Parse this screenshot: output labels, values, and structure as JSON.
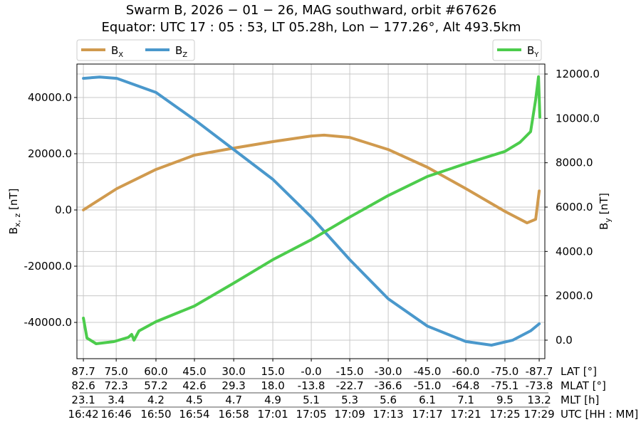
{
  "chart_data": {
    "type": "line",
    "title_line1": "Swarm B,  2026 − 01 − 26,  MAG southward,  orbit #67626",
    "title_line2": "Equator:  UTC 17 : 05 : 53,  LT 05.28h,  Lon − 177.26°,  Alt 493.5km",
    "ylabel_left": "B",
    "ylabel_left_sub": "x, z",
    "ylabel_left_unit": " [nT]",
    "ylabel_right": "B",
    "ylabel_right_sub": "y",
    "ylabel_right_unit": " [nT]",
    "xlim": [
      "16:41:20",
      "17:29:35"
    ],
    "ylim_left": [
      -52900,
      51900
    ],
    "ylim_right": [
      -835,
      12450
    ],
    "yticks_left": [
      40000,
      20000,
      0,
      -20000,
      -40000
    ],
    "yticks_left_labels": [
      "40000.0",
      "20000.0",
      "0.0",
      "-20000.0",
      "-40000.0"
    ],
    "yticks_right": [
      12000,
      10000,
      8000,
      6000,
      4000,
      2000,
      0
    ],
    "yticks_right_labels": [
      "12000.0",
      "10000.0",
      "8000.0",
      "6000.0",
      "4000.0",
      "2000.0",
      "0.0"
    ],
    "grid": true,
    "x_tick_rows": [
      {
        "name": "LAT [°]",
        "labels": [
          "87.7",
          "75.0",
          "60.0",
          "45.0",
          "30.0",
          "15.0",
          "-0.0",
          "-15.0",
          "-30.0",
          "-45.0",
          "-60.0",
          "-75.0",
          "-87.7"
        ]
      },
      {
        "name": "MLAT [°]",
        "labels": [
          "82.6",
          "72.3",
          "57.2",
          "42.6",
          "29.3",
          "18.0",
          "-13.8",
          "-22.7",
          "-36.6",
          "-51.0",
          "-64.8",
          "-75.1",
          "-73.8"
        ]
      },
      {
        "name": "MLT [h]",
        "labels": [
          "23.1",
          "3.4",
          "4.2",
          "4.5",
          "4.7",
          "4.9",
          "5.1",
          "5.3",
          "5.6",
          "6.1",
          "7.1",
          "9.5",
          "13.2"
        ]
      },
      {
        "name": "UTC [HH : MM]",
        "labels": [
          "16:42",
          "16:46",
          "16:50",
          "16:54",
          "16:58",
          "17:01",
          "17:05",
          "17:09",
          "17:13",
          "17:17",
          "17:21",
          "17:25",
          "17:29"
        ]
      }
    ],
    "x_tick_times": [
      "16:42:00",
      "16:45:23",
      "16:49:29",
      "16:53:27",
      "16:57:30",
      "17:01:32",
      "17:05:30",
      "17:09:28",
      "17:13:26",
      "17:17:28",
      "17:21:26",
      "17:25:28",
      "17:29:00"
    ],
    "legend_left": "top-left",
    "legend_right": "top-right",
    "series": [
      {
        "name": "B",
        "sub": "X",
        "axis": "left",
        "color": "#d09a4e",
        "x": [
          "16:42:00",
          "16:45:27",
          "16:49:29",
          "16:53:27",
          "16:57:30",
          "17:01:32",
          "17:05:30",
          "17:06:49",
          "17:09:28",
          "17:13:26",
          "17:17:28",
          "17:21:26",
          "17:25:28",
          "17:27:45",
          "17:28:38",
          "17:29:00"
        ],
        "y": [
          0,
          7600,
          14400,
          19500,
          22000,
          24300,
          26300,
          26600,
          25800,
          21500,
          15200,
          7600,
          -500,
          -4600,
          -3300,
          6800
        ]
      },
      {
        "name": "B",
        "sub": "Z",
        "axis": "left",
        "color": "#4a98cc",
        "x": [
          "16:42:00",
          "16:43:41",
          "16:45:27",
          "16:49:29",
          "16:53:27",
          "16:57:30",
          "17:01:32",
          "17:05:30",
          "17:09:28",
          "17:13:26",
          "17:17:28",
          "17:21:26",
          "17:24:05",
          "17:26:17",
          "17:28:07",
          "17:29:00"
        ],
        "y": [
          46800,
          47300,
          46800,
          41800,
          32100,
          21500,
          10900,
          -2500,
          -17700,
          -31600,
          -41300,
          -46800,
          -48100,
          -46300,
          -43000,
          -40500
        ]
      },
      {
        "name": "B",
        "sub": "Y",
        "axis": "right",
        "color": "#4ccc4c",
        "x": [
          "16:42:00",
          "16:42:22",
          "16:43:19",
          "16:45:09",
          "16:46:38",
          "16:46:59",
          "16:47:13",
          "16:47:44",
          "16:49:29",
          "16:53:27",
          "16:57:30",
          "17:01:32",
          "17:05:30",
          "17:09:28",
          "17:13:26",
          "17:17:28",
          "17:21:26",
          "17:25:28",
          "17:27:01",
          "17:28:07",
          "17:28:38",
          "17:28:56",
          "17:29:04"
        ],
        "y": [
          995,
          96,
          -160,
          -64,
          128,
          260,
          0,
          417,
          835,
          1540,
          2570,
          3630,
          4530,
          5550,
          6520,
          7380,
          7960,
          8510,
          8920,
          9400,
          10850,
          11880,
          10050
        ]
      }
    ]
  }
}
